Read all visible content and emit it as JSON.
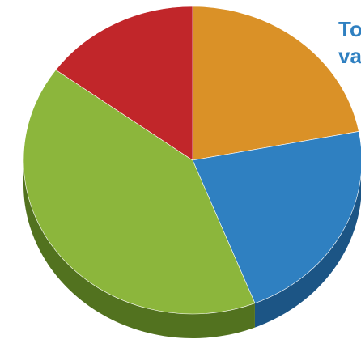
{
  "chart_data": {
    "type": "pie",
    "title_lines": [
      "To",
      "va"
    ],
    "slices": [
      {
        "value": 22,
        "color": "#DA9127",
        "side_color": "#8A5A14"
      },
      {
        "value": 22,
        "color": "#2F80C1",
        "side_color": "#1C5585"
      },
      {
        "value": 41,
        "color": "#8CB63C",
        "side_color": "#52721F"
      },
      {
        "value": 15,
        "color": "#C1262A",
        "side_color": "#7A1518"
      }
    ]
  },
  "colors": {
    "title": "#2F80C1",
    "background": "#FFFFFF"
  }
}
